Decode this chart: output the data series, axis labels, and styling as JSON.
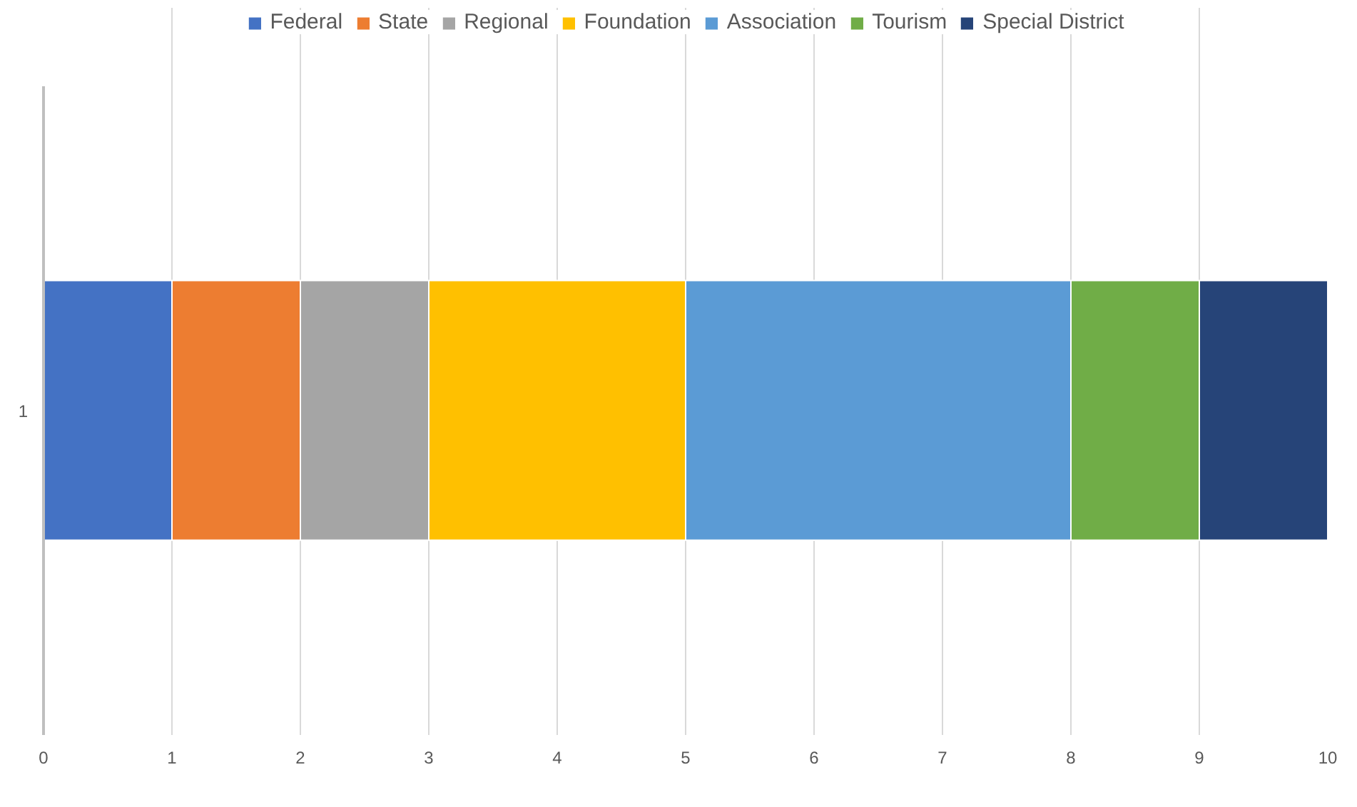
{
  "chart_data": {
    "type": "bar",
    "orientation": "horizontal",
    "stacked": true,
    "categories": [
      "1"
    ],
    "series": [
      {
        "name": "Federal",
        "color": "#4472c4",
        "values": [
          1
        ]
      },
      {
        "name": "State",
        "color": "#ed7d31",
        "values": [
          1
        ]
      },
      {
        "name": "Regional",
        "color": "#a5a5a5",
        "values": [
          1
        ]
      },
      {
        "name": "Foundation",
        "color": "#ffc000",
        "values": [
          2
        ]
      },
      {
        "name": "Association",
        "color": "#5b9bd5",
        "values": [
          3
        ]
      },
      {
        "name": "Tourism",
        "color": "#70ad47",
        "values": [
          1
        ]
      },
      {
        "name": "Special District",
        "color": "#264478",
        "values": [
          1
        ]
      }
    ],
    "xlim": [
      0,
      10
    ],
    "xticks": [
      0,
      1,
      2,
      3,
      4,
      5,
      6,
      7,
      8,
      9,
      10
    ],
    "grid": "x",
    "legend": "top"
  }
}
